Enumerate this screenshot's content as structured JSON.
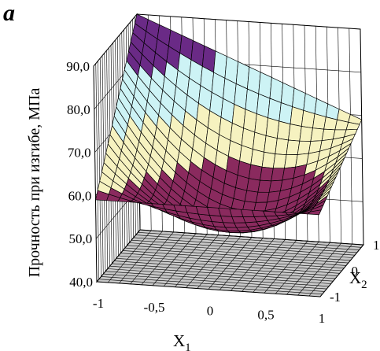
{
  "panel_label": "a",
  "chart_data": {
    "type": "surface3d",
    "zlabel": "Прочность при изгибе, МПа",
    "xlabel": "X",
    "xlabel_sub": "1",
    "ylabel": "X",
    "ylabel_sub": "2",
    "x_ticks": [
      "-1",
      "-0,5",
      "0",
      "0,5",
      "1"
    ],
    "y_ticks": [
      "-1",
      "0",
      "1"
    ],
    "z_ticks": [
      "40,0",
      "50,0",
      "60,0",
      "70,0",
      "80,0",
      "90,0"
    ],
    "xlim": [
      -1,
      1
    ],
    "ylim": [
      -1,
      1
    ],
    "zlim": [
      40,
      90
    ],
    "grid": true,
    "bands": [
      {
        "min": 40,
        "max": 50,
        "color": "#9a9af2"
      },
      {
        "min": 50,
        "max": 60,
        "color": "#8a2a5e"
      },
      {
        "min": 60,
        "max": 70,
        "color": "#f6f2c0"
      },
      {
        "min": 70,
        "max": 80,
        "color": "#cdf3f5"
      },
      {
        "min": 80,
        "max": 90,
        "color": "#6a2a86"
      }
    ],
    "surface_corners": [
      {
        "x1": -1,
        "x2": -1,
        "z": 59
      },
      {
        "x1": 1,
        "x2": -1,
        "z": 59
      },
      {
        "x1": -1,
        "x2": 1,
        "z": 90
      },
      {
        "x1": 1,
        "x2": 1,
        "z": 69
      },
      {
        "x1": 0,
        "x2": 0,
        "z": 51
      }
    ]
  }
}
